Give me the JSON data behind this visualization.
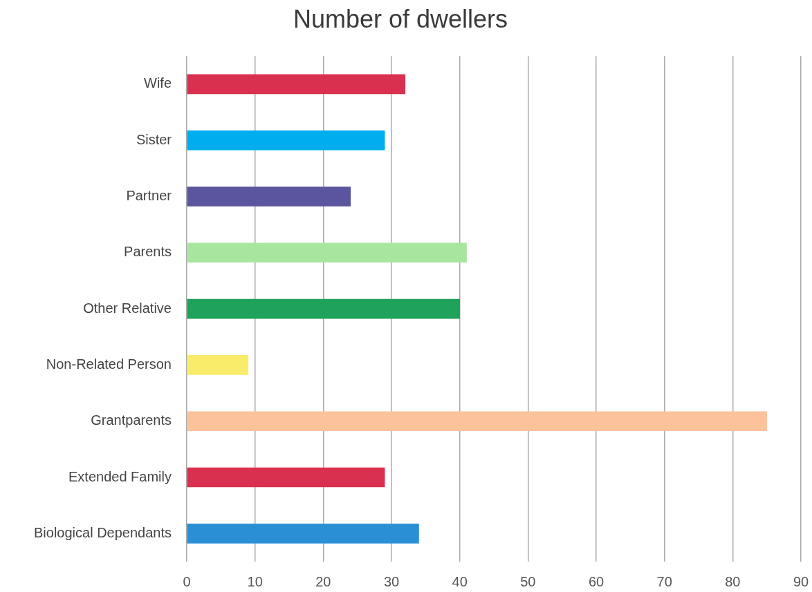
{
  "chart_data": {
    "type": "bar",
    "orientation": "horizontal",
    "title": "Number of dwellers",
    "categories": [
      "Wife",
      "Sister",
      "Partner",
      "Parents",
      "Other Relative",
      "Non-Related Person",
      "Grantparents",
      "Extended Family",
      "Biological Dependants"
    ],
    "values": [
      32,
      29,
      24,
      41,
      40,
      9,
      85,
      29,
      34
    ],
    "colors": [
      "#d9304f",
      "#00aeef",
      "#5b55a0",
      "#a8e6a0",
      "#1fa25a",
      "#f9ec6a",
      "#fbc29c",
      "#d9304f",
      "#2b8fd6"
    ],
    "xlim": [
      0,
      90
    ],
    "xticks": [
      0,
      10,
      20,
      30,
      40,
      50,
      60,
      70,
      80,
      90
    ],
    "grid": "x"
  }
}
